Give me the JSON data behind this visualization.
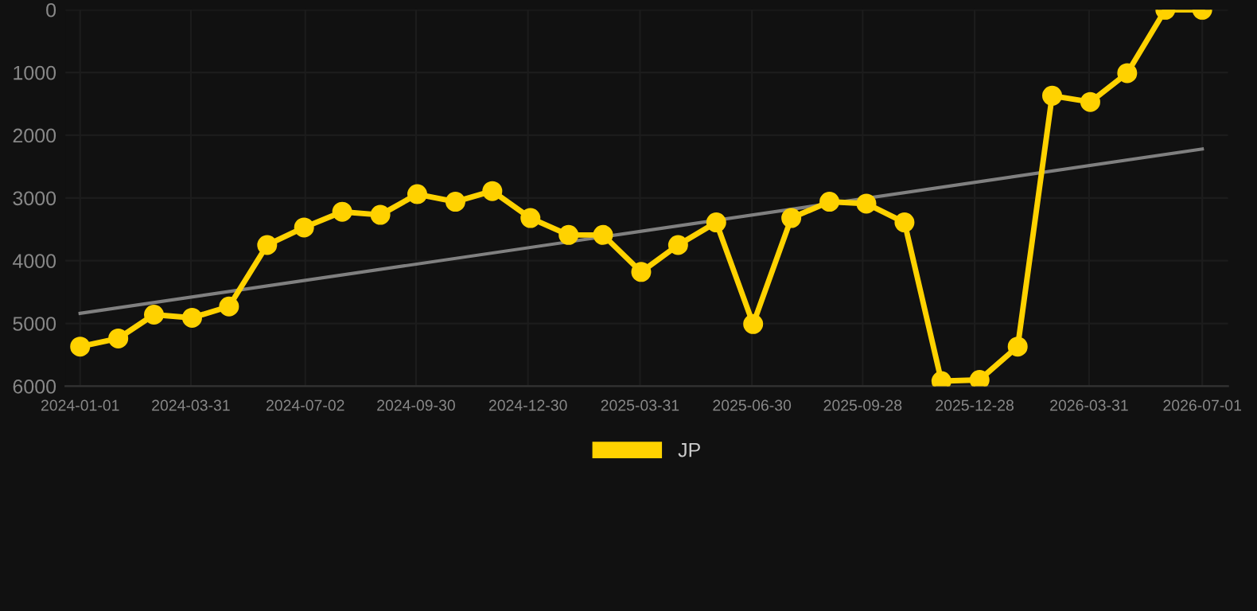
{
  "chart_data": {
    "type": "line",
    "x": [
      "2024-01-01",
      "2024-02-01",
      "2024-03-01",
      "2024-04-01",
      "2024-05-01",
      "2024-06-01",
      "2024-07-01",
      "2024-08-01",
      "2024-09-01",
      "2024-10-01",
      "2024-11-01",
      "2024-12-01",
      "2025-01-01",
      "2025-02-01",
      "2025-03-01",
      "2025-04-01",
      "2025-05-01",
      "2025-06-01",
      "2025-07-01",
      "2025-08-01",
      "2025-09-01",
      "2025-10-01",
      "2025-11-01",
      "2025-12-01",
      "2026-01-01",
      "2026-02-01",
      "2026-03-01",
      "2026-04-01",
      "2026-05-01",
      "2026-06-01",
      "2026-07-01"
    ],
    "series": [
      {
        "name": "JP",
        "color": "#ffd200",
        "marker": "circle",
        "values": [
          5370,
          5240,
          4860,
          4910,
          4730,
          3750,
          3470,
          3220,
          3270,
          2940,
          3060,
          2890,
          3320,
          3590,
          3590,
          4180,
          3750,
          3390,
          5010,
          3320,
          3060,
          3090,
          3390,
          5920,
          5900,
          5370,
          1370,
          1470,
          1010,
          0,
          0
        ]
      },
      {
        "type": "line",
        "color": "#808080",
        "marker": "none",
        "x": [
          "2024-01-01",
          "2026-07-01"
        ],
        "values": [
          4840,
          2220
        ]
      }
    ],
    "xlim": [
      "2023-12-20",
      "2026-07-22"
    ],
    "xticks": [
      {
        "value": "2024-01-01",
        "label": "2024-01-01"
      },
      {
        "value": "2024-03-31",
        "label": "2024-03-31"
      },
      {
        "value": "2024-07-02",
        "label": "2024-07-02"
      },
      {
        "value": "2024-09-30",
        "label": "2024-09-30"
      },
      {
        "value": "2024-12-30",
        "label": "2024-12-30"
      },
      {
        "value": "2025-03-31",
        "label": "2025-03-31"
      },
      {
        "value": "2025-06-30",
        "label": "2025-06-30"
      },
      {
        "value": "2025-09-28",
        "label": "2025-09-28"
      },
      {
        "value": "2025-12-28",
        "label": "2025-12-28"
      },
      {
        "value": "2026-03-31",
        "label": "2026-03-31"
      },
      {
        "value": "2026-07-01",
        "label": "2026-07-01"
      }
    ],
    "ylim": [
      6000,
      0
    ],
    "yticks": [
      0,
      1000,
      2000,
      3000,
      4000,
      5000,
      6000
    ],
    "grid": true,
    "legend": "bottom"
  }
}
